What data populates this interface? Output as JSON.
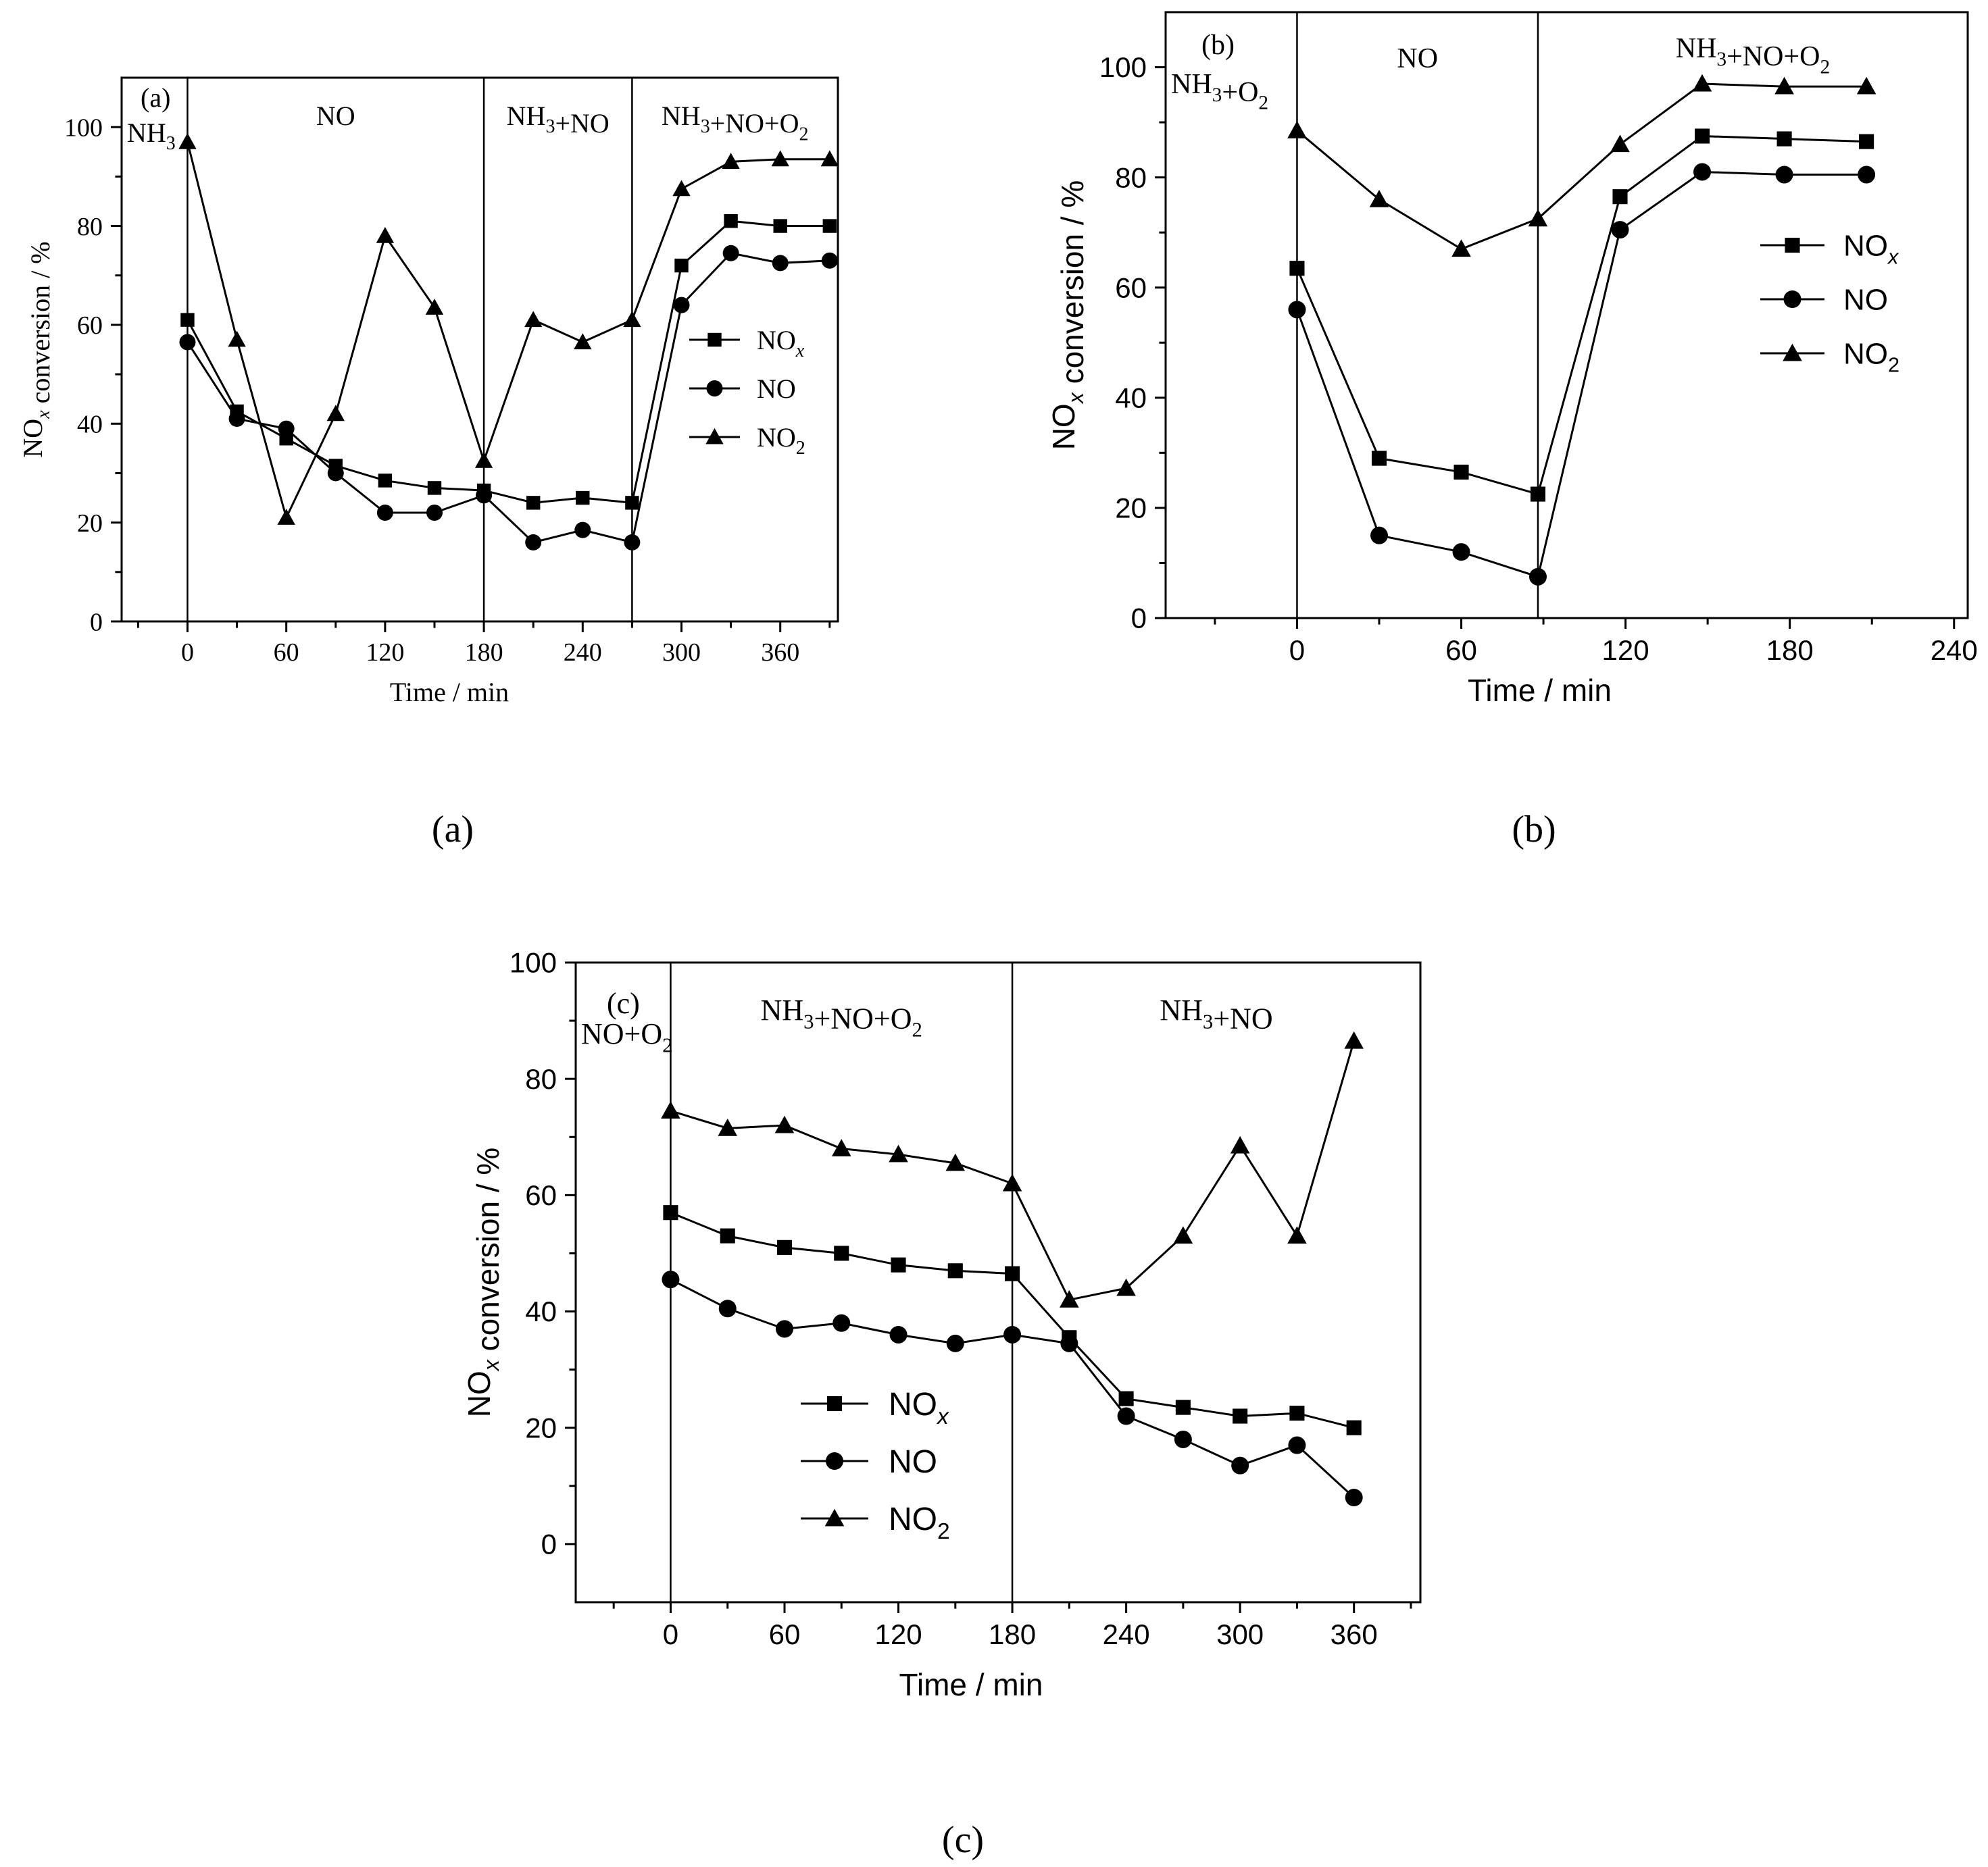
{
  "figure": {
    "panel_captions": [
      "(a)",
      "(b)",
      "(c)"
    ]
  },
  "chart_data": [
    {
      "id": "a",
      "type": "line",
      "panel_label": "(a)",
      "title": "",
      "xlabel": "Time / min",
      "ylabel": "NOx conversion / %",
      "xlim": [
        -40,
        395
      ],
      "ylim": [
        0,
        110
      ],
      "xticks": [
        0,
        60,
        120,
        180,
        240,
        300,
        360
      ],
      "yticks": [
        0,
        20,
        40,
        60,
        80,
        100
      ],
      "legend_position": "right",
      "phases": [
        {
          "label": "NH3",
          "start": -40,
          "end": 0
        },
        {
          "label": "NO",
          "start": 0,
          "end": 180
        },
        {
          "label": "NH3+NO",
          "start": 180,
          "end": 270
        },
        {
          "label": "NH3+NO+O2",
          "start": 270,
          "end": 395
        }
      ],
      "phase_boundaries": [
        0,
        180,
        270
      ],
      "x": [
        0,
        30,
        60,
        90,
        120,
        150,
        180,
        210,
        240,
        270,
        300,
        330,
        360,
        390
      ],
      "series": [
        {
          "name": "NOx",
          "marker": "square",
          "values": [
            61,
            42.5,
            37,
            31.5,
            28.5,
            27,
            26.5,
            24,
            25,
            24,
            72,
            81,
            80,
            80
          ]
        },
        {
          "name": "NO",
          "marker": "circle",
          "values": [
            56.5,
            41,
            39,
            30,
            22,
            22,
            25.5,
            16,
            18.5,
            16,
            64,
            74.5,
            72.5,
            73
          ]
        },
        {
          "name": "NO2",
          "marker": "triangle",
          "values": [
            97,
            57,
            21,
            42,
            78,
            63.5,
            32.5,
            61,
            56.5,
            61,
            87.5,
            93,
            93.5,
            93.5
          ]
        }
      ]
    },
    {
      "id": "b",
      "type": "line",
      "panel_label": "(b)",
      "title": "",
      "xlabel": "Time / min",
      "ylabel": "NOx conversion / %",
      "xlim": [
        -48,
        245
      ],
      "ylim": [
        0,
        110
      ],
      "xticks": [
        0,
        60,
        120,
        180,
        240
      ],
      "yticks": [
        0,
        20,
        40,
        60,
        80,
        100
      ],
      "legend_position": "right",
      "phases": [
        {
          "label": "NH3+O2",
          "start": -48,
          "end": 0
        },
        {
          "label": "NO",
          "start": 0,
          "end": 88
        },
        {
          "label": "NH3+NO+O2",
          "start": 88,
          "end": 245
        }
      ],
      "phase_boundaries": [
        0,
        88
      ],
      "x": [
        0,
        30,
        60,
        88,
        118,
        148,
        178,
        208
      ],
      "series": [
        {
          "name": "NOx",
          "marker": "square",
          "values": [
            63.5,
            29,
            26.5,
            22.5,
            76.5,
            87.5,
            87,
            86.5
          ]
        },
        {
          "name": "NO",
          "marker": "circle",
          "values": [
            56,
            15,
            12,
            7.5,
            70.5,
            81,
            80.5,
            80.5
          ]
        },
        {
          "name": "NO2",
          "marker": "triangle",
          "values": [
            88.5,
            76,
            67,
            72.5,
            86,
            97,
            96.5,
            96.5
          ]
        }
      ]
    },
    {
      "id": "c",
      "type": "line",
      "panel_label": "(c)",
      "title": "",
      "xlabel": "Time / min",
      "ylabel": "NOx conversion / %",
      "xlim": [
        -50,
        395
      ],
      "ylim": [
        -10,
        100
      ],
      "xticks": [
        0,
        60,
        120,
        180,
        240,
        300,
        360
      ],
      "yticks": [
        0,
        20,
        40,
        60,
        80,
        100
      ],
      "legend_position": "center-left",
      "phases": [
        {
          "label": "NO+O2",
          "start": -50,
          "end": 0
        },
        {
          "label": "NH3+NO+O2",
          "start": 0,
          "end": 180
        },
        {
          "label": "NH3+NO",
          "start": 180,
          "end": 395
        }
      ],
      "phase_boundaries": [
        0,
        180
      ],
      "x": [
        0,
        30,
        60,
        90,
        120,
        150,
        180,
        210,
        240,
        270,
        300,
        330,
        360
      ],
      "series": [
        {
          "name": "NOx",
          "marker": "square",
          "values": [
            57,
            53,
            51,
            50,
            48,
            47,
            46.5,
            35.5,
            25,
            23.5,
            22,
            22.5,
            20
          ]
        },
        {
          "name": "NO",
          "marker": "circle",
          "values": [
            45.5,
            40.5,
            37,
            38,
            36,
            34.5,
            36,
            34.5,
            22,
            18,
            13.5,
            17,
            8
          ]
        },
        {
          "name": "NO2",
          "marker": "triangle",
          "values": [
            74.5,
            71.5,
            72,
            68,
            67,
            65.5,
            62,
            42,
            44,
            53,
            68.5,
            53,
            86.5
          ]
        }
      ]
    }
  ]
}
